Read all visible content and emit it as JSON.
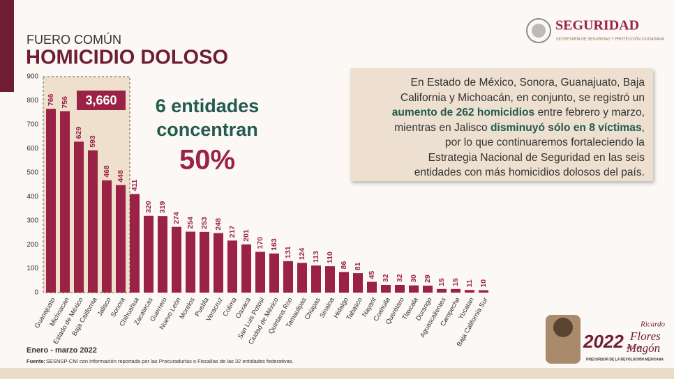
{
  "header": {
    "kicker": "FUERO COMÚN",
    "title": "HOMICIDIO DOLOSO"
  },
  "logo": {
    "name": "SEGURIDAD",
    "subtitle": "SECRETARÍA DE SEGURIDAD Y PROTECCIÓN CIUDADANA"
  },
  "annotation": {
    "total": "3,660",
    "line1": "6 entidades",
    "line2": "concentran",
    "share": "50%"
  },
  "info_box": {
    "lines": [
      [
        {
          "text": "En Estado de México, Sonora, Guanajuato, Baja",
          "bold": false
        }
      ],
      [
        {
          "text": "California y Michoacán, en conjunto, se registró un",
          "bold": false
        }
      ],
      [
        {
          "text": "aumento de 262 homicidios",
          "bold": true
        },
        {
          "text": " entre febrero y marzo,",
          "bold": false
        }
      ],
      [
        {
          "text": "mientras en Jalisco ",
          "bold": false
        },
        {
          "text": "disminuyó sólo en 8 víctimas",
          "bold": true
        },
        {
          "text": ",",
          "bold": false
        }
      ],
      [
        {
          "text": "por lo que continuaremos fortaleciendo la",
          "bold": false
        }
      ],
      [
        {
          "text": "Estrategia Nacional de Seguridad en las seis",
          "bold": false
        }
      ],
      [
        {
          "text": "entidades con más homicidios dolosos del país.",
          "bold": false
        }
      ]
    ]
  },
  "footer": {
    "period": "Enero - marzo 2022",
    "source_label": "Fuente:",
    "source": "SESNSP-CNI con información reportada por las Procuradurías o Fiscalías de las 32 entidades federativas."
  },
  "emblem": {
    "year": "2022",
    "prefix": "Año de",
    "name1": "Ricardo",
    "name2": "Flores",
    "name3": "Magón",
    "tagline": "PRECURSOR DE LA REVOLUCIÓN MEXICANA"
  },
  "chart_data": {
    "type": "bar",
    "categories": [
      "Guanajuato",
      "Michoacan",
      "Estado de México",
      "Baja California",
      "Jalisco",
      "Sonora",
      "Chihuahua",
      "Zacatecas",
      "Guerrero",
      "Nuevo León",
      "Morelos",
      "Puebla",
      "Veracruz",
      "Colima",
      "Oaxaca",
      "San Luis Potosí",
      "Ciudad de México",
      "Quintana Roo",
      "Tamaulipas",
      "Chiapas",
      "Sinaloa",
      "Hidalgo",
      "Tabasco",
      "Nayarit",
      "Coahuila",
      "Querétaro",
      "Tlaxcala",
      "Durango",
      "Aguascalientes",
      "Campeche",
      "Yucatan",
      "Baja California Sur"
    ],
    "values": [
      766,
      756,
      629,
      593,
      468,
      448,
      411,
      320,
      319,
      274,
      254,
      253,
      248,
      217,
      201,
      170,
      163,
      131,
      124,
      113,
      110,
      86,
      81,
      45,
      32,
      32,
      30,
      29,
      15,
      15,
      11,
      10
    ],
    "color": "#9b2247",
    "ylim": [
      0,
      900
    ],
    "yticks": [
      0,
      100,
      200,
      300,
      400,
      500,
      600,
      700,
      800,
      900
    ],
    "grid": false
  }
}
